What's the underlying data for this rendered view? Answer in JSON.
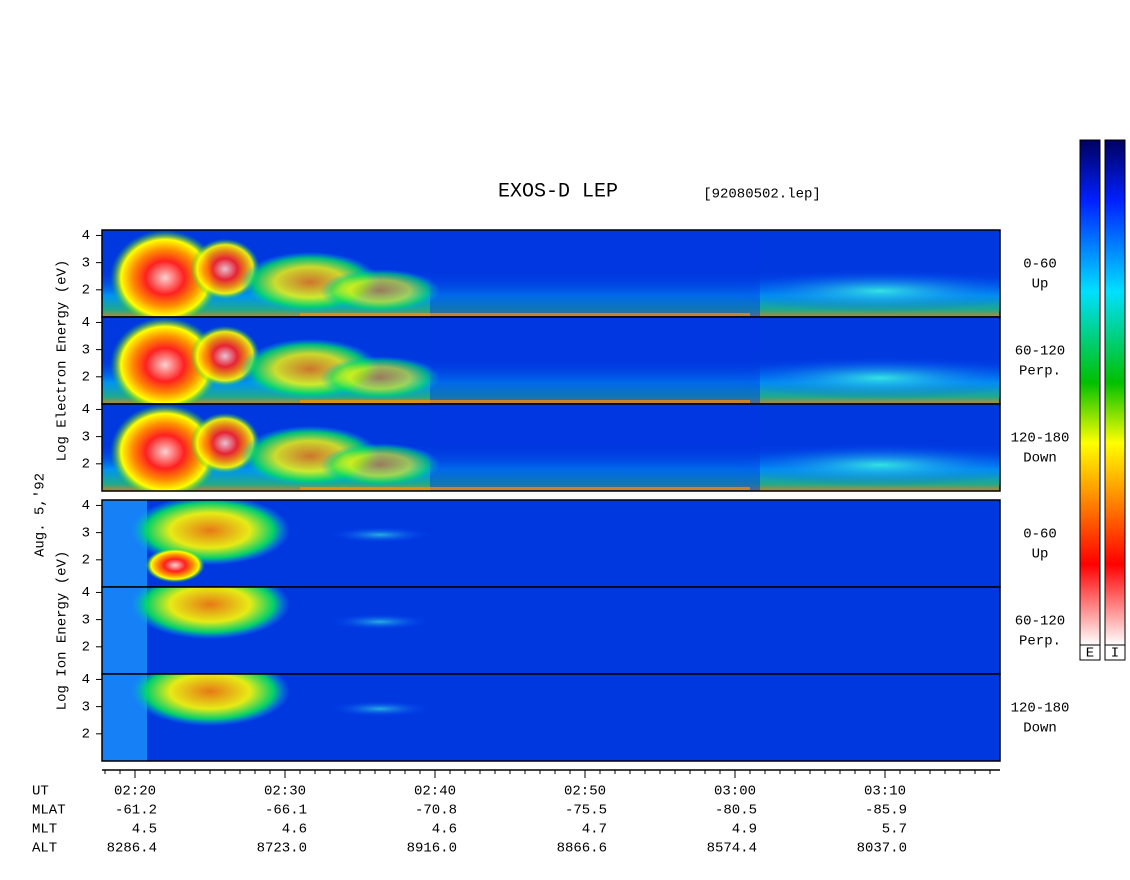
{
  "chart_data": {
    "type": "spectrogram",
    "title": "EXOS-D LEP",
    "file_label": "[92080502.lep]",
    "date_label": "Aug. 5,'92",
    "ylim": [
      1,
      4.2
    ],
    "yticks": [
      2,
      3,
      4
    ],
    "groups": [
      {
        "ylabel": "Log Electron Energy (eV)",
        "panels": [
          {
            "label": "0-60",
            "sublabel": "Up"
          },
          {
            "label": "60-120",
            "sublabel": "Perp."
          },
          {
            "label": "120-180",
            "sublabel": "Down"
          }
        ]
      },
      {
        "ylabel": "Log Ion Energy (eV)",
        "panels": [
          {
            "label": "0-60",
            "sublabel": "Up"
          },
          {
            "label": "60-120",
            "sublabel": "Perp."
          },
          {
            "label": "120-180",
            "sublabel": "Down"
          }
        ]
      }
    ],
    "ephemeris": {
      "labels": [
        "UT",
        "MLAT",
        "MLT",
        "ALT"
      ],
      "rows": [
        [
          "02:20",
          "02:30",
          "02:40",
          "02:50",
          "03:00",
          "03:10"
        ],
        [
          "-61.2",
          "-66.1",
          "-70.8",
          "-75.5",
          "-80.5",
          "-85.9"
        ],
        [
          "4.5",
          "4.6",
          "4.6",
          "4.7",
          "4.9",
          "5.7"
        ],
        [
          "8286.4",
          "8723.0",
          "8916.0",
          "8866.6",
          "8574.4",
          "8037.0"
        ]
      ]
    },
    "colorbars": [
      "E",
      "I"
    ]
  }
}
